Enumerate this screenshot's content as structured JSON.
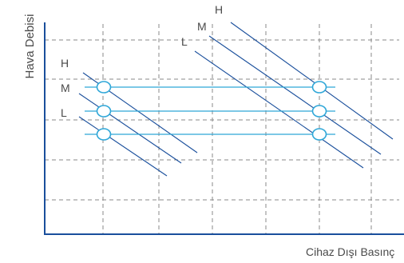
{
  "chart_data": {
    "type": "line",
    "xlabel": "Cihaz Dışı Basınç",
    "ylabel": "Hava Debisi",
    "grid": true,
    "colors": {
      "axis": "#1a4f9c",
      "curve": "#1a4f9c",
      "operating": "#2fa7d8",
      "grid": "#8a8a8a",
      "text": "#555555"
    },
    "curve_groups": [
      {
        "name": "left",
        "labels": [
          "H",
          "M",
          "L"
        ]
      },
      {
        "name": "right",
        "labels": [
          "H",
          "M",
          "L"
        ]
      }
    ],
    "operating_lines": [
      {
        "name": "H"
      },
      {
        "name": "M"
      },
      {
        "name": "L"
      }
    ]
  }
}
